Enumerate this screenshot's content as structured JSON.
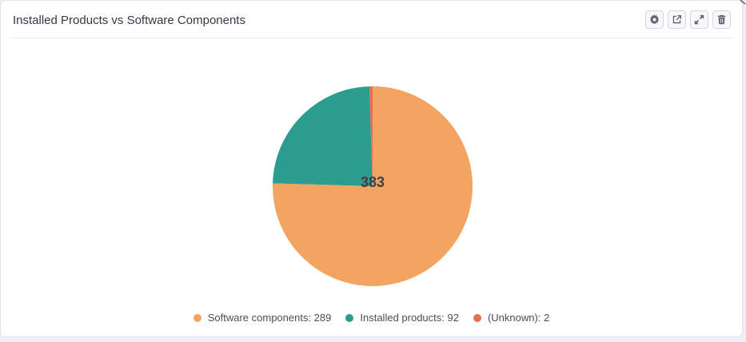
{
  "widget": {
    "title": "Installed Products vs Software Components",
    "tools": [
      {
        "name": "settings-button",
        "icon": "gear-icon"
      },
      {
        "name": "open-external-button",
        "icon": "external-link-icon"
      },
      {
        "name": "expand-button",
        "icon": "expand-icon"
      },
      {
        "name": "delete-button",
        "icon": "trash-icon"
      }
    ]
  },
  "chart_data": {
    "type": "pie",
    "total_label": "383",
    "total": 383,
    "slices": [
      {
        "name": "Software components",
        "value": 289,
        "color": "#f4a462",
        "legend": "Software components: 289"
      },
      {
        "name": "Installed products",
        "value": 92,
        "color": "#2a9d8f",
        "legend": "Installed products: 92"
      },
      {
        "name": "(Unknown)",
        "value": 2,
        "color": "#e76f51",
        "legend": "(Unknown): 2"
      }
    ]
  }
}
